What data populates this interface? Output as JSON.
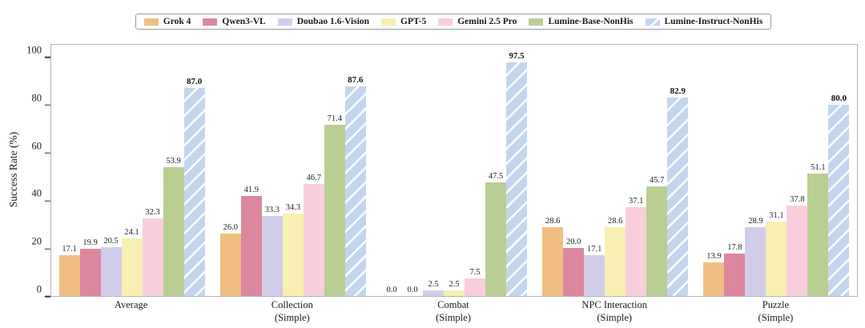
{
  "chart_data": {
    "type": "bar",
    "title": "",
    "ylabel": "Success Rate (%)",
    "ylim": [
      0,
      105
    ],
    "yticks": [
      0,
      20,
      40,
      60,
      80,
      100
    ],
    "grid": false,
    "legend_position": "top-center",
    "categories": [
      "Average",
      "Collection\n(Simple)",
      "Combat\n(Simple)",
      "NPC Interaction\n(Simple)",
      "Puzzle\n(Simple)"
    ],
    "series": [
      {
        "name": "Grok 4",
        "color": "#F0BE82",
        "hatch": false,
        "bold_labels": false,
        "values": [
          17.1,
          26.0,
          0.0,
          28.6,
          13.9
        ]
      },
      {
        "name": "Qwen3-VL",
        "color": "#DC879D",
        "hatch": false,
        "bold_labels": false,
        "values": [
          19.9,
          41.9,
          0.0,
          20.0,
          17.8
        ]
      },
      {
        "name": "Doubao 1.6-Vision",
        "color": "#D2CCEB",
        "hatch": false,
        "bold_labels": false,
        "values": [
          20.5,
          33.3,
          2.5,
          17.1,
          28.9
        ]
      },
      {
        "name": "GPT-5",
        "color": "#F7F0B2",
        "hatch": false,
        "bold_labels": false,
        "values": [
          24.1,
          34.3,
          2.5,
          28.6,
          31.1
        ]
      },
      {
        "name": "Gemini 2.5 Pro",
        "color": "#F9CEDC",
        "hatch": false,
        "bold_labels": false,
        "values": [
          32.3,
          46.7,
          7.5,
          37.1,
          37.8
        ]
      },
      {
        "name": "Lumine-Base-NonHis",
        "color": "#B9CE93",
        "hatch": false,
        "bold_labels": false,
        "values": [
          53.9,
          71.4,
          47.5,
          45.7,
          51.1
        ]
      },
      {
        "name": "Lumine-Instruct-NonHis",
        "color": "#C2D5EE",
        "hatch": true,
        "bold_labels": true,
        "values": [
          87.0,
          87.6,
          97.5,
          82.9,
          80.0
        ]
      }
    ],
    "hatch_stripe_color": "#ffffff"
  }
}
